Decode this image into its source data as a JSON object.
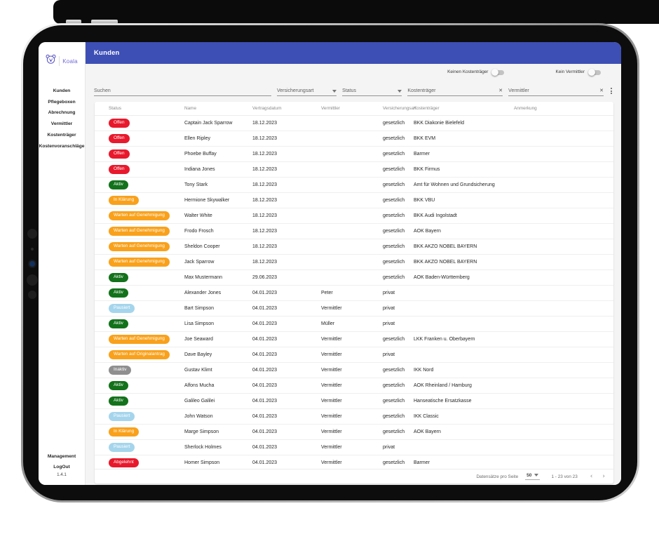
{
  "colors": {
    "appbar": "#3d4fb5",
    "brand": "#5b57c7",
    "badge_red": "#e8192c",
    "badge_green": "#13721b",
    "badge_orange": "#f9a11b",
    "badge_blue": "#a5d5ec",
    "badge_gray": "#8f8f8f"
  },
  "app": {
    "brand": {
      "name": "Koala"
    },
    "sidebar": {
      "items": [
        {
          "label": "Kunden"
        },
        {
          "label": "Pflegeboxen"
        },
        {
          "label": "Abrechnung"
        },
        {
          "label": "Vermittler"
        },
        {
          "label": "Kostenträger"
        },
        {
          "label": "Kostenvoranschläge"
        }
      ],
      "management_label": "Management",
      "logout_label": "LogOut",
      "version": "1.4.1"
    },
    "header": {
      "title": "Kunden"
    },
    "toggles": [
      {
        "label": "Keinen Kostenträger",
        "on": false
      },
      {
        "label": "Kein Vermittler",
        "on": false
      }
    ],
    "filters": {
      "search_placeholder": "Suchen",
      "select_insurance": "Versicherungsart",
      "select_status": "Status",
      "input_payer": "Kostenträger",
      "input_agent": "Vermittler",
      "clear_icon": "✕",
      "menu_icon": "kebab-menu"
    },
    "table": {
      "columns": [
        "Status",
        "Name",
        "Vertragsdatum",
        "Vermittler",
        "Versicherungsart",
        "Kostenträger",
        "Anmerkung"
      ],
      "rows": [
        {
          "status": "Offen",
          "color": "red",
          "name": "Captain Jack Sparrow",
          "date": "18.12.2023",
          "agent": "",
          "insurance": "gesetzlich",
          "payer": "BKK Diakonie Bielefeld",
          "note": ""
        },
        {
          "status": "Offen",
          "color": "red",
          "name": "Ellen Ripley",
          "date": "18.12.2023",
          "agent": "",
          "insurance": "gesetzlich",
          "payer": "BKK EVM",
          "note": ""
        },
        {
          "status": "Offen",
          "color": "red",
          "name": "Phoebe Buffay",
          "date": "18.12.2023",
          "agent": "",
          "insurance": "gesetzlich",
          "payer": "Barmer",
          "note": ""
        },
        {
          "status": "Offen",
          "color": "red",
          "name": "Indiana Jones",
          "date": "18.12.2023",
          "agent": "",
          "insurance": "gesetzlich",
          "payer": "BKK Firmus",
          "note": ""
        },
        {
          "status": "Aktiv",
          "color": "green",
          "name": "Tony Stark",
          "date": "18.12.2023",
          "agent": "",
          "insurance": "gesetzlich",
          "payer": "Amt für Wohnen und Grundsicherung",
          "note": ""
        },
        {
          "status": "In Klärung",
          "color": "orange",
          "name": "Hermione Skywalker",
          "date": "18.12.2023",
          "agent": "",
          "insurance": "gesetzlich",
          "payer": "BKK VBU",
          "note": ""
        },
        {
          "status": "Warten auf Genehmigung",
          "color": "orange",
          "name": "Walter White",
          "date": "18.12.2023",
          "agent": "",
          "insurance": "gesetzlich",
          "payer": "BKK Audi Ingolstadt",
          "note": ""
        },
        {
          "status": "Warten auf Genehmigung",
          "color": "orange",
          "name": "Frodo Frosch",
          "date": "18.12.2023",
          "agent": "",
          "insurance": "gesetzlich",
          "payer": "AOK Bayern",
          "note": ""
        },
        {
          "status": "Warten auf Genehmigung",
          "color": "orange",
          "name": "Sheldon Cooper",
          "date": "18.12.2023",
          "agent": "",
          "insurance": "gesetzlich",
          "payer": "BKK AKZO NOBEL BAYERN",
          "note": ""
        },
        {
          "status": "Warten auf Genehmigung",
          "color": "orange",
          "name": "Jack Sparrow",
          "date": "18.12.2023",
          "agent": "",
          "insurance": "gesetzlich",
          "payer": "BKK AKZO NOBEL BAYERN",
          "note": ""
        },
        {
          "status": "Aktiv",
          "color": "green",
          "name": "Max Mustermann",
          "date": "29.06.2023",
          "agent": "",
          "insurance": "gesetzlich",
          "payer": "AOK Baden-Württemberg",
          "note": ""
        },
        {
          "status": "Aktiv",
          "color": "green",
          "name": "Alexander Jones",
          "date": "04.01.2023",
          "agent": "Peter",
          "insurance": "privat",
          "payer": "",
          "note": ""
        },
        {
          "status": "Pausiert",
          "color": "blue",
          "name": "Bart Simpson",
          "date": "04.01.2023",
          "agent": "Vermittler",
          "insurance": "privat",
          "payer": "",
          "note": ""
        },
        {
          "status": "Aktiv",
          "color": "green",
          "name": "Lisa Simpson",
          "date": "04.01.2023",
          "agent": "Müller",
          "insurance": "privat",
          "payer": "",
          "note": ""
        },
        {
          "status": "Warten auf Genehmigung",
          "color": "orange",
          "name": "Joe Seaward",
          "date": "04.01.2023",
          "agent": "Vermittler",
          "insurance": "gesetzlich",
          "payer": "LKK Franken u. Oberbayern",
          "note": ""
        },
        {
          "status": "Warten auf Originalantrag",
          "color": "orange",
          "name": "Dave Bayley",
          "date": "04.01.2023",
          "agent": "Vermittler",
          "insurance": "privat",
          "payer": "",
          "note": ""
        },
        {
          "status": "Inaktiv",
          "color": "gray",
          "name": "Gustav Klimt",
          "date": "04.01.2023",
          "agent": "Vermittler",
          "insurance": "gesetzlich",
          "payer": "IKK Nord",
          "note": ""
        },
        {
          "status": "Aktiv",
          "color": "green",
          "name": "Alfons Mucha",
          "date": "04.01.2023",
          "agent": "Vermittler",
          "insurance": "gesetzlich",
          "payer": "AOK Rheinland / Hamburg",
          "note": ""
        },
        {
          "status": "Aktiv",
          "color": "green",
          "name": "Galileo Galilei",
          "date": "04.01.2023",
          "agent": "Vermittler",
          "insurance": "gesetzlich",
          "payer": "Hanseatische Ersatzkasse",
          "note": ""
        },
        {
          "status": "Pausiert",
          "color": "blue",
          "name": "John Watson",
          "date": "04.01.2023",
          "agent": "Vermittler",
          "insurance": "gesetzlich",
          "payer": "IKK Classic",
          "note": ""
        },
        {
          "status": "In Klärung",
          "color": "orange",
          "name": "Marge Simpson",
          "date": "04.01.2023",
          "agent": "Vermittler",
          "insurance": "gesetzlich",
          "payer": "AOK Bayern",
          "note": ""
        },
        {
          "status": "Pausiert",
          "color": "blue",
          "name": "Sherlock Holmes",
          "date": "04.01.2023",
          "agent": "Vermittler",
          "insurance": "privat",
          "payer": "",
          "note": ""
        },
        {
          "status": "Abgelehnt",
          "color": "red",
          "name": "Homer Simpson",
          "date": "04.01.2023",
          "agent": "Vermittler",
          "insurance": "gesetzlich",
          "payer": "Barmer",
          "note": ""
        }
      ]
    },
    "pagination": {
      "items_label": "Datensätze pro Seite",
      "page_size": "50",
      "range_label": "1 - 23 von 23",
      "prev_icon": "‹",
      "next_icon": "›"
    }
  }
}
